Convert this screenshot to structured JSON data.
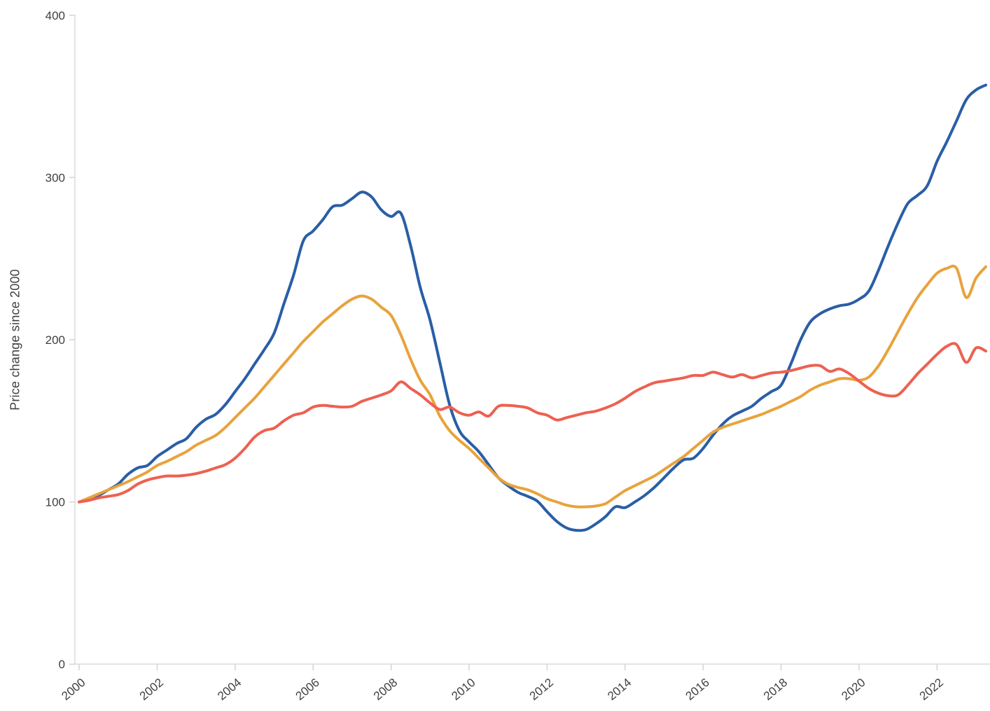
{
  "page": {
    "background": "#ffffff"
  },
  "chart_data": {
    "type": "line",
    "title": "",
    "xlabel": "",
    "ylabel": "Price change since 2000",
    "x_start": 2000,
    "x_step": 0.25,
    "xlim": [
      2000,
      2023.25
    ],
    "ylim": [
      0,
      400
    ],
    "y_ticks": [
      0,
      100,
      200,
      300,
      400
    ],
    "x_ticks": [
      2000,
      2002,
      2004,
      2006,
      2008,
      2010,
      2012,
      2014,
      2016,
      2018,
      2020,
      2022
    ],
    "grid": false,
    "legend_position": "none",
    "axis_color": "#dcdcdc",
    "tick_color": "#d4d4d4",
    "tick_label_color": "#3f3f3f",
    "line_width": 4,
    "series": [
      {
        "name": "blue-series",
        "color": "#2a5ea6",
        "values": [
          100,
          102,
          104,
          107.5,
          111,
          117,
          121,
          122.5,
          128,
          132,
          136,
          139,
          146,
          151,
          154,
          160,
          168,
          176,
          185,
          194,
          204,
          222,
          240,
          261,
          267,
          274,
          282,
          283,
          287,
          291,
          288,
          280,
          276,
          278,
          258,
          232,
          212,
          186,
          160,
          144,
          137,
          131,
          123,
          115,
          110,
          106,
          103.5,
          100.5,
          94,
          88,
          84,
          82.5,
          83,
          86.5,
          91,
          97,
          96.5,
          100,
          104,
          109,
          115,
          121,
          126,
          127,
          133,
          141,
          148,
          153,
          156,
          159,
          164,
          168,
          172,
          185,
          200,
          211,
          216,
          219,
          221,
          222,
          225,
          230,
          243,
          258,
          272,
          284,
          289,
          295,
          310,
          322,
          335,
          348,
          354,
          357
        ]
      },
      {
        "name": "orange-series",
        "color": "#e8a33d",
        "values": [
          100,
          102.5,
          105,
          107.5,
          110,
          112.5,
          115.5,
          118.5,
          122.5,
          125,
          128,
          131,
          135,
          138,
          141,
          146,
          152,
          158,
          164,
          171,
          178,
          185,
          192,
          199,
          205,
          211,
          216,
          221,
          225,
          227,
          225,
          220,
          215,
          203,
          188,
          175,
          166,
          153,
          144,
          138,
          133,
          127,
          121,
          115,
          111,
          109,
          107.5,
          105,
          102,
          100,
          98,
          97,
          97,
          97.5,
          99,
          103,
          107,
          110,
          113,
          116,
          120,
          124,
          128,
          133,
          138,
          143,
          146,
          148,
          150,
          152,
          154,
          156.5,
          159,
          162,
          165,
          169,
          172,
          174,
          176,
          176,
          175,
          177,
          184,
          194,
          205,
          216,
          226,
          234,
          241,
          244,
          244,
          226,
          238,
          245
        ]
      },
      {
        "name": "red-series",
        "color": "#ed6151",
        "values": [
          100,
          101,
          102.5,
          103.5,
          104.5,
          107,
          111,
          113.5,
          115,
          116,
          116,
          116.5,
          117.5,
          119,
          121,
          123,
          127,
          133,
          140,
          144,
          145.5,
          150,
          153.5,
          155,
          158.5,
          159.5,
          159,
          158.5,
          159,
          162,
          164,
          166,
          168.5,
          174,
          170,
          166,
          161,
          157,
          158.5,
          155,
          153.5,
          155.5,
          153,
          159,
          159.5,
          159,
          158,
          155,
          153.5,
          150.5,
          152,
          153.5,
          155,
          156,
          158,
          160.5,
          164,
          168,
          171,
          173.5,
          174.5,
          175.5,
          176.5,
          178,
          178,
          180,
          178.5,
          177,
          178.5,
          176.5,
          178,
          179.5,
          180,
          181,
          182.5,
          184,
          184,
          180.5,
          182,
          179,
          174.5,
          170,
          167,
          165.5,
          166,
          172,
          179,
          185,
          191,
          196,
          197,
          186,
          195,
          193
        ]
      }
    ]
  }
}
